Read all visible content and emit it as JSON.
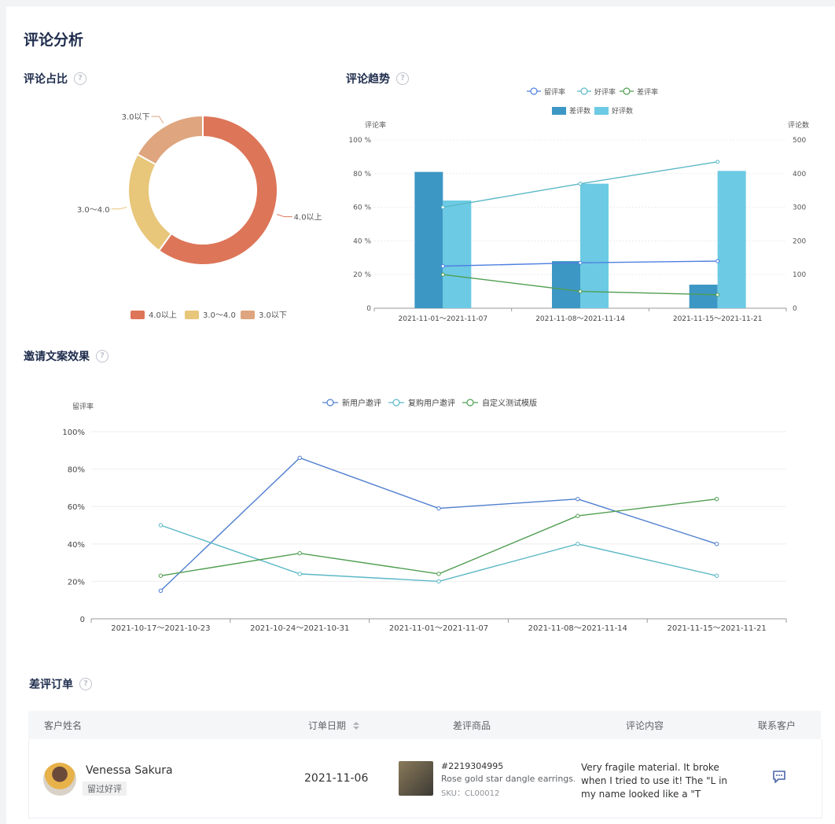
{
  "page": {
    "title": "评论分析"
  },
  "sections": {
    "ratio": "评论占比",
    "trend": "评论趋势",
    "invite": "邀请文案效果",
    "bad_orders": "差评订单"
  },
  "help_glyph": "?",
  "donut": {
    "chart_data": {
      "type": "pie",
      "labels": [
        "4.0以上",
        "3.0～4.0",
        "3.0以下"
      ],
      "values": [
        60,
        23,
        17
      ],
      "colors": [
        "#dd7558",
        "#e8c67a",
        "#dea57e"
      ],
      "legend": [
        "4.0以上",
        "3.0～4.0",
        "3.0以下"
      ]
    }
  },
  "trend": {
    "chart_data": {
      "type": "bar",
      "categories": [
        "2021-11-01～2021-11-07",
        "2021-11-08～2021-11-14",
        "2021-11-15～2021-11-21"
      ],
      "bar_series": [
        {
          "name": "差评数",
          "values": [
            405,
            140,
            70
          ],
          "color": "#3d97c4"
        },
        {
          "name": "好评数",
          "values": [
            320,
            370,
            408
          ],
          "color": "#6ccae4"
        }
      ],
      "line_series": [
        {
          "name": "留评率",
          "values": [
            25,
            27,
            28
          ],
          "color": "#4f7fe0"
        },
        {
          "name": "好评率",
          "values": [
            60,
            74,
            87
          ],
          "color": "#5bb8c6"
        },
        {
          "name": "差评率",
          "values": [
            20,
            10,
            8
          ],
          "color": "#4f9e50"
        }
      ],
      "ylabel_left": "评论率",
      "ylabel_right": "评论数",
      "left_ticks": [
        "100 %",
        "80 %",
        "60 %",
        "40 %",
        "20 %",
        "0"
      ],
      "right_ticks": [
        "500",
        "400",
        "300",
        "200",
        "100",
        "0"
      ],
      "ylim_left": [
        0,
        100
      ],
      "ylim_right": [
        0,
        500
      ]
    }
  },
  "invite": {
    "chart_data": {
      "type": "line",
      "categories": [
        "2021-10-17～2021-10-23",
        "2021-10-24～2021-10-31",
        "2021-11-01～2021-11-07",
        "2021-11-08～2021-11-14",
        "2021-11-15～2021-11-21"
      ],
      "series": [
        {
          "name": "新用户邀评",
          "values": [
            15,
            86,
            59,
            64,
            40
          ],
          "color": "#4f7fcf"
        },
        {
          "name": "复购用户邀评",
          "values": [
            50,
            24,
            20,
            40,
            23
          ],
          "color": "#5bb8c6"
        },
        {
          "name": "自定义测试模版",
          "values": [
            23,
            35,
            24,
            55,
            64
          ],
          "color": "#4f9e50"
        }
      ],
      "ylabel": "留评率",
      "ticks": [
        "100%",
        "80%",
        "60%",
        "40%",
        "20%",
        "0"
      ],
      "ylim": [
        0,
        100
      ]
    }
  },
  "table": {
    "headers": {
      "name": "客户姓名",
      "date": "订单日期",
      "product": "差评商品",
      "comment": "评论内容",
      "contact": "联系客户"
    },
    "rows": [
      {
        "name": "Venessa Sakura",
        "tag": "留过好评",
        "date": "2021-11-06",
        "order_id": "#2219304995",
        "product_title": "Rose gold star dangle earrings...",
        "sku": "SKU：CL00012",
        "comment": "Very fragile material. It broke when I tried to use it! The \"L in my name looked like a \"T"
      }
    ]
  }
}
